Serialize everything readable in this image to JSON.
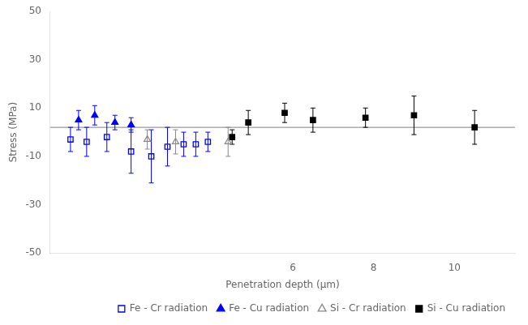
{
  "chart_data": {
    "type": "scatter",
    "xlabel": "Penetration depth (μm)",
    "ylabel": "Stress (MPa)",
    "xlim": [
      0,
      11.5
    ],
    "ylim": [
      -50,
      50
    ],
    "xticks": [
      6,
      8,
      10
    ],
    "yticks": [
      -50,
      -30,
      -10,
      10,
      30,
      50
    ],
    "grid": false,
    "legend": "lower right",
    "reference_lines": [
      {
        "y": 2,
        "color": "gray"
      }
    ],
    "series": [
      {
        "name": "Fe - Cr radiation",
        "color": "blue",
        "marker": "square-open",
        "x": [
          0.5,
          0.9,
          1.4,
          2.0,
          2.5,
          2.9,
          3.3,
          3.6,
          3.9
        ],
        "values": [
          -3,
          -4,
          -2,
          -8,
          -10,
          -6,
          -5,
          -5,
          -4
        ],
        "yerr": [
          5,
          6,
          6,
          9,
          11,
          8,
          5,
          5,
          4
        ]
      },
      {
        "name": "Fe - Cu radiation",
        "color": "blue",
        "marker": "triangle",
        "x": [
          0.7,
          1.1,
          1.6,
          2.0
        ],
        "values": [
          5,
          7,
          4,
          3
        ],
        "yerr": [
          4,
          4,
          3,
          3
        ]
      },
      {
        "name": "Si - Cr radiation",
        "color": "#888888",
        "marker": "triangle-open",
        "x": [
          2.4,
          3.1,
          4.4
        ],
        "values": [
          -3,
          -4,
          -4
        ],
        "yerr": [
          4,
          5,
          6
        ]
      },
      {
        "name": "Si - Cu radiation",
        "color": "black",
        "marker": "square",
        "x": [
          4.5,
          4.9,
          5.8,
          6.5,
          7.8,
          9.0,
          10.5
        ],
        "values": [
          -2,
          4,
          8,
          5,
          6,
          7,
          2
        ],
        "yerr": [
          3,
          5,
          4,
          5,
          4,
          8,
          7
        ]
      }
    ]
  }
}
